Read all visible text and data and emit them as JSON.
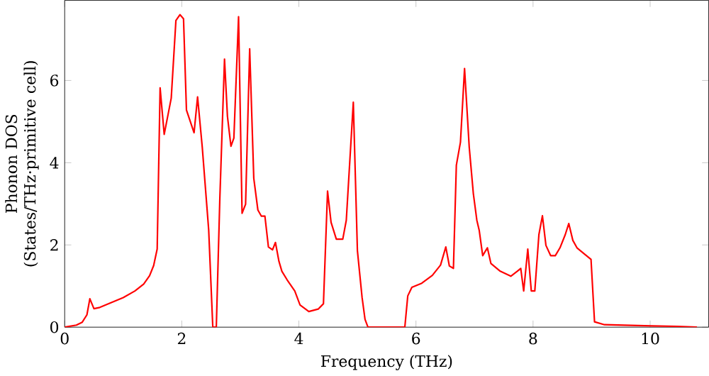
{
  "chart_data": {
    "type": "line",
    "xlabel": "Frequency (THz)",
    "ylabel": "Phonon DOS (States/THz·primitive cell)",
    "xlim": [
      0,
      11
    ],
    "ylim": [
      0,
      7.95
    ],
    "xticks": [
      0,
      2,
      4,
      6,
      8,
      10
    ],
    "yticks": [
      0,
      2,
      4,
      6
    ],
    "grid": false,
    "marker": "none",
    "line_style": "solid",
    "series": [
      {
        "color": "#ff0000",
        "x": [
          0,
          0.2,
          0.3,
          0.38,
          0.43,
          0.5,
          0.6,
          0.8,
          1.0,
          1.2,
          1.35,
          1.45,
          1.52,
          1.58,
          1.63,
          1.7,
          1.82,
          1.9,
          1.97,
          2.03,
          2.08,
          2.21,
          2.27,
          2.35,
          2.46,
          2.53,
          2.59,
          2.65,
          2.73,
          2.78,
          2.84,
          2.89,
          2.97,
          3.03,
          3.09,
          3.16,
          3.23,
          3.3,
          3.36,
          3.42,
          3.48,
          3.55,
          3.6,
          3.66,
          3.71,
          3.8,
          3.93,
          4.02,
          4.17,
          4.33,
          4.42,
          4.49,
          4.55,
          4.64,
          4.75,
          4.81,
          4.93,
          5.0,
          5.08,
          5.13,
          5.18,
          5.81,
          5.86,
          5.93,
          6.1,
          6.28,
          6.42,
          6.51,
          6.57,
          6.64,
          6.69,
          6.76,
          6.83,
          6.91,
          6.98,
          7.04,
          7.08,
          7.14,
          7.22,
          7.28,
          7.44,
          7.62,
          7.73,
          7.79,
          7.84,
          7.91,
          7.97,
          8.03,
          8.1,
          8.16,
          8.22,
          8.3,
          8.38,
          8.46,
          8.55,
          8.61,
          8.68,
          8.75,
          8.86,
          8.99,
          9.05,
          9.22,
          10.02,
          10.46,
          10.8
        ],
        "values": [
          0,
          0.05,
          0.12,
          0.3,
          0.69,
          0.45,
          0.48,
          0.6,
          0.72,
          0.88,
          1.05,
          1.25,
          1.5,
          1.9,
          5.82,
          4.69,
          5.57,
          7.46,
          7.6,
          7.5,
          5.28,
          4.73,
          5.6,
          4.38,
          2.36,
          0,
          0,
          3.12,
          6.52,
          5.13,
          4.4,
          4.6,
          7.55,
          2.77,
          2.99,
          6.77,
          3.62,
          2.85,
          2.7,
          2.7,
          1.95,
          1.88,
          2.06,
          1.6,
          1.36,
          1.15,
          0.88,
          0.54,
          0.38,
          0.44,
          0.57,
          3.31,
          2.55,
          2.14,
          2.14,
          2.6,
          5.47,
          1.86,
          0.72,
          0.19,
          0,
          0,
          0.76,
          0.97,
          1.07,
          1.26,
          1.51,
          1.95,
          1.49,
          1.43,
          3.94,
          4.5,
          6.29,
          4.38,
          3.25,
          2.6,
          2.36,
          1.74,
          1.93,
          1.55,
          1.36,
          1.24,
          1.36,
          1.43,
          0.88,
          1.9,
          0.88,
          0.88,
          2.25,
          2.71,
          1.99,
          1.74,
          1.74,
          1.93,
          2.25,
          2.52,
          2.11,
          1.93,
          1.8,
          1.65,
          0.13,
          0.06,
          0.03,
          0.02,
          0
        ]
      }
    ]
  }
}
